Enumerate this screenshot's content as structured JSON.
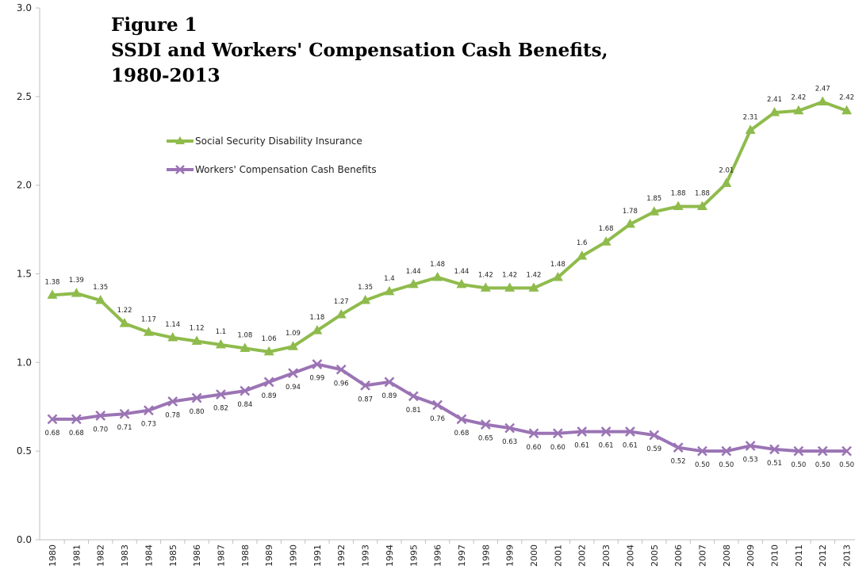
{
  "title": {
    "line1": "Figure 1",
    "line2": "SSDI and Workers' Compensation Cash Benefits,",
    "line3": "1980-2013"
  },
  "colors": {
    "ssdi": "#8fbb4c",
    "wc": "#9b74b5",
    "axis": "#bfbfbf",
    "text": "#222222"
  },
  "chart_data": {
    "type": "line",
    "categories": [
      "1980",
      "1981",
      "1982",
      "1983",
      "1984",
      "1985",
      "1986",
      "1987",
      "1988",
      "1989",
      "1990",
      "1991",
      "1992",
      "1993",
      "1994",
      "1995",
      "1996",
      "1997",
      "1998",
      "1999",
      "2000",
      "2001",
      "2002",
      "2003",
      "2004",
      "2005",
      "2006",
      "2007",
      "2008",
      "2009",
      "2010",
      "2011",
      "2012",
      "2013"
    ],
    "ylim": [
      0,
      3.0
    ],
    "yticks": [
      "0.0",
      "0.5",
      "1.0",
      "1.5",
      "2.0",
      "2.5",
      "3.0"
    ],
    "xlabel": "",
    "ylabel": "",
    "legend_position": "upper-left",
    "series": [
      {
        "name": "Social Security Disability Insurance",
        "marker": "triangle",
        "values": [
          1.38,
          1.39,
          1.35,
          1.22,
          1.17,
          1.14,
          1.12,
          1.1,
          1.08,
          1.06,
          1.09,
          1.18,
          1.27,
          1.35,
          1.4,
          1.44,
          1.48,
          1.44,
          1.42,
          1.42,
          1.42,
          1.48,
          1.6,
          1.68,
          1.78,
          1.85,
          1.88,
          1.88,
          2.01,
          2.31,
          2.41,
          2.42,
          2.47,
          2.42
        ],
        "labels": [
          "1.38",
          "1.39",
          "1.35",
          "1.22",
          "1.17",
          "1.14",
          "1.12",
          "1.1",
          "1.08",
          "1.06",
          "1.09",
          "1.18",
          "1.27",
          "1.35",
          "1.4",
          "1.44",
          "1.48",
          "1.44",
          "1.42",
          "1.42",
          "1.42",
          "1.48",
          "1.6",
          "1.68",
          "1.78",
          "1.85",
          "1.88",
          "1.88",
          "2.01",
          "2.31",
          "2.41",
          "2.42",
          "2.47",
          "2.42"
        ]
      },
      {
        "name": "Workers' Compensation Cash Benefits",
        "marker": "x",
        "values": [
          0.68,
          0.68,
          0.7,
          0.71,
          0.73,
          0.78,
          0.8,
          0.82,
          0.84,
          0.89,
          0.94,
          0.99,
          0.96,
          0.87,
          0.89,
          0.81,
          0.76,
          0.68,
          0.65,
          0.63,
          0.6,
          0.6,
          0.61,
          0.61,
          0.61,
          0.59,
          0.52,
          0.5,
          0.5,
          0.53,
          0.51,
          0.5,
          0.5,
          0.5
        ],
        "labels": [
          "0.68",
          "0.68",
          "0.70",
          "0.71",
          "0.73",
          "0.78",
          "0.80",
          "0.82",
          "0.84",
          "0.89",
          "0.94",
          "0.99",
          "0.96",
          "0.87",
          "0.89",
          "0.81",
          "0.76",
          "0.68",
          "0.65",
          "0.63",
          "0.60",
          "0.60",
          "0.61",
          "0.61",
          "0.61",
          "0.59",
          "0.52",
          "0.50",
          "0.50",
          "0.53",
          "0.51",
          "0.50",
          "0.50",
          "0.50"
        ]
      }
    ]
  }
}
